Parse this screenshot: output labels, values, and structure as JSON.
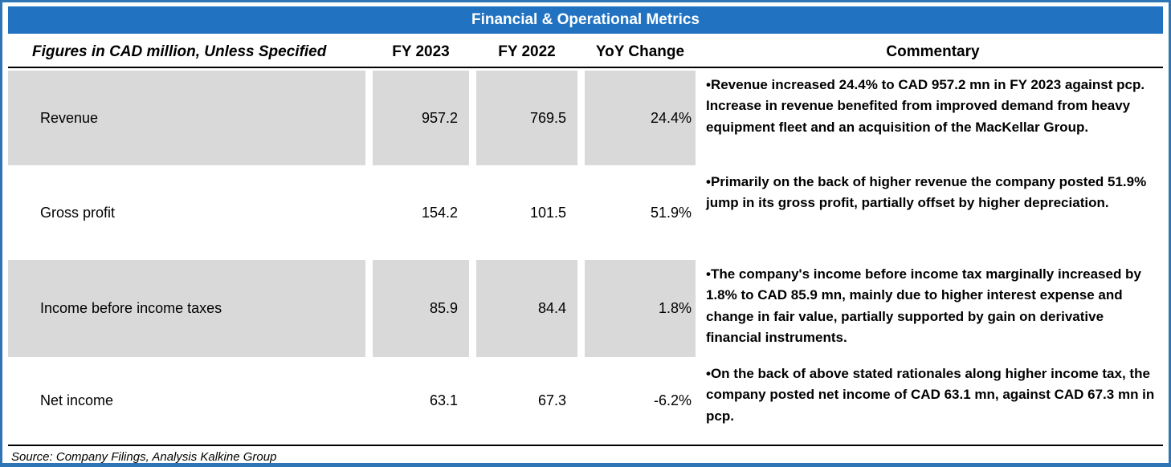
{
  "title": "Financial & Operational Metrics",
  "columns": {
    "figures": "Figures in CAD million, Unless Specified",
    "fy2023": "FY 2023",
    "fy2022": "FY 2022",
    "yoy": "YoY Change",
    "commentary": "Commentary"
  },
  "rows": [
    {
      "label": "Revenue",
      "fy2023": "957.2",
      "fy2022": "769.5",
      "yoy": "24.4%",
      "commentary": "•Revenue increased 24.4% to CAD 957.2 mn in FY 2023 against pcp. Increase in revenue benefited from improved demand from heavy equipment fleet and an acquisition of the MacKellar Group."
    },
    {
      "label": "Gross profit",
      "fy2023": "154.2",
      "fy2022": "101.5",
      "yoy": "51.9%",
      "commentary": "•Primarily on the back of higher revenue the company posted 51.9% jump in its gross profit, partially offset by higher depreciation."
    },
    {
      "label": "Income before income taxes",
      "fy2023": "85.9",
      "fy2022": "84.4",
      "yoy": "1.8%",
      "commentary": "•The company's income before income tax marginally increased by 1.8% to CAD 85.9 mn, mainly due to higher interest expense and change in fair value, partially supported by gain on derivative financial instruments."
    },
    {
      "label": "Net income",
      "fy2023": "63.1",
      "fy2022": "67.3",
      "yoy": "-6.2%",
      "commentary": "•On the back of above stated rationales along higher income tax, the company posted net income of CAD 63.1 mn, against CAD 67.3 mn in pcp."
    }
  ],
  "source": "Source: Company Filings, Analysis Kalkine Group",
  "colors": {
    "accent_blue": "#2173C2",
    "border_blue": "#2E75B6",
    "row_gray": "#D9D9D9"
  }
}
